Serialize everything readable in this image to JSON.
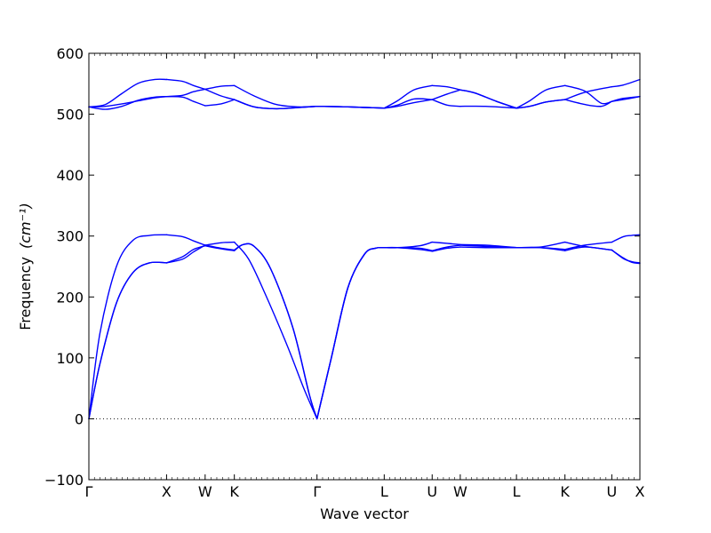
{
  "chart_data": {
    "type": "line",
    "title": "",
    "xlabel": "Wave vector",
    "ylabel": "Frequency",
    "ylabel_unit": "(cm⁻¹)",
    "ylim": [
      -100,
      600
    ],
    "yticks": [
      -100,
      0,
      100,
      200,
      300,
      400,
      500,
      600
    ],
    "ytick_labels": [
      "−100",
      "0",
      "100",
      "200",
      "300",
      "400",
      "500",
      "600"
    ],
    "xlim": [
      0,
      1
    ],
    "kpoints": [
      {
        "label": "Γ",
        "pos": 0.0
      },
      {
        "label": "X",
        "pos": 0.141
      },
      {
        "label": "W",
        "pos": 0.211
      },
      {
        "label": "K",
        "pos": 0.264
      },
      {
        "label": "Γ",
        "pos": 0.414
      },
      {
        "label": "L",
        "pos": 0.536
      },
      {
        "label": "U",
        "pos": 0.623
      },
      {
        "label": "W",
        "pos": 0.674
      },
      {
        "label": "L",
        "pos": 0.776
      },
      {
        "label": "K",
        "pos": 0.864
      },
      {
        "label": "U",
        "pos": 0.949
      },
      {
        "label": "X",
        "pos": 1.0
      }
    ],
    "zero_line": true,
    "band_color": "#0000ff",
    "series": [
      {
        "x": [
          0.0,
          0.02,
          0.05,
          0.08,
          0.11,
          0.141
        ],
        "y": [
          0,
          90,
          190,
          240,
          256,
          256
        ]
      },
      {
        "x": [
          0.0,
          0.02,
          0.05,
          0.08,
          0.11,
          0.141
        ],
        "y": [
          0,
          90,
          190,
          240,
          256,
          256
        ]
      },
      {
        "x": [
          0.0,
          0.02,
          0.05,
          0.08,
          0.11,
          0.141
        ],
        "y": [
          0,
          140,
          250,
          293,
          301,
          302
        ]
      },
      {
        "x": [
          0.141,
          0.17,
          0.19,
          0.211
        ],
        "y": [
          256,
          262,
          274,
          285
        ]
      },
      {
        "x": [
          0.141,
          0.17,
          0.19,
          0.211
        ],
        "y": [
          256,
          266,
          278,
          284
        ]
      },
      {
        "x": [
          0.141,
          0.17,
          0.19,
          0.211
        ],
        "y": [
          302,
          299,
          292,
          285
        ]
      },
      {
        "x": [
          0.211,
          0.24,
          0.264
        ],
        "y": [
          285,
          289,
          290
        ]
      },
      {
        "x": [
          0.211,
          0.24,
          0.264
        ],
        "y": [
          284,
          279,
          276
        ]
      },
      {
        "x": [
          0.211,
          0.24,
          0.264
        ],
        "y": [
          285,
          280,
          277
        ]
      },
      {
        "x": [
          0.264,
          0.29,
          0.32,
          0.36,
          0.39,
          0.414
        ],
        "y": [
          290,
          262,
          205,
          120,
          50,
          0
        ]
      },
      {
        "x": [
          0.264,
          0.28,
          0.3,
          0.33,
          0.37,
          0.4,
          0.414
        ],
        "y": [
          276,
          286,
          283,
          246,
          150,
          40,
          0
        ]
      },
      {
        "x": [
          0.264,
          0.28,
          0.3,
          0.33,
          0.37,
          0.4,
          0.414
        ],
        "y": [
          277,
          286,
          283,
          246,
          150,
          40,
          0
        ]
      },
      {
        "x": [
          0.414,
          0.44,
          0.47,
          0.5,
          0.52,
          0.536
        ],
        "y": [
          0,
          100,
          215,
          270,
          280,
          281
        ]
      },
      {
        "x": [
          0.414,
          0.44,
          0.47,
          0.5,
          0.52,
          0.536
        ],
        "y": [
          0,
          100,
          215,
          270,
          280,
          281
        ]
      },
      {
        "x": [
          0.414,
          0.44,
          0.47,
          0.5,
          0.52,
          0.536
        ],
        "y": [
          0,
          100,
          215,
          270,
          280,
          281
        ]
      },
      {
        "x": [
          0.536,
          0.56,
          0.6,
          0.623
        ],
        "y": [
          281,
          281,
          284,
          290
        ]
      },
      {
        "x": [
          0.536,
          0.56,
          0.6,
          0.623
        ],
        "y": [
          281,
          281,
          280,
          276
        ]
      },
      {
        "x": [
          0.536,
          0.56,
          0.6,
          0.623
        ],
        "y": [
          281,
          281,
          278,
          275
        ]
      },
      {
        "x": [
          0.623,
          0.65,
          0.674
        ],
        "y": [
          290,
          288,
          286
        ]
      },
      {
        "x": [
          0.623,
          0.65,
          0.674
        ],
        "y": [
          276,
          282,
          285
        ]
      },
      {
        "x": [
          0.623,
          0.65,
          0.674
        ],
        "y": [
          275,
          280,
          282
        ]
      },
      {
        "x": [
          0.674,
          0.72,
          0.776
        ],
        "y": [
          286,
          285,
          281
        ]
      },
      {
        "x": [
          0.674,
          0.72,
          0.776
        ],
        "y": [
          285,
          283,
          281
        ]
      },
      {
        "x": [
          0.674,
          0.72,
          0.776
        ],
        "y": [
          282,
          281,
          281
        ]
      },
      {
        "x": [
          0.776,
          0.82,
          0.864
        ],
        "y": [
          281,
          282,
          290
        ]
      },
      {
        "x": [
          0.776,
          0.82,
          0.864
        ],
        "y": [
          281,
          281,
          278
        ]
      },
      {
        "x": [
          0.776,
          0.82,
          0.864
        ],
        "y": [
          281,
          281,
          276
        ]
      },
      {
        "x": [
          0.864,
          0.9,
          0.949
        ],
        "y": [
          290,
          283,
          277
        ]
      },
      {
        "x": [
          0.864,
          0.9,
          0.949
        ],
        "y": [
          278,
          285,
          290
        ]
      },
      {
        "x": [
          0.864,
          0.9,
          0.949
        ],
        "y": [
          276,
          282,
          277
        ]
      },
      {
        "x": [
          0.949,
          0.97,
          0.985,
          1.0
        ],
        "y": [
          290,
          299,
          301,
          302
        ]
      },
      {
        "x": [
          0.949,
          0.97,
          0.985,
          1.0
        ],
        "y": [
          277,
          263,
          258,
          256
        ]
      },
      {
        "x": [
          0.949,
          0.97,
          0.985,
          1.0
        ],
        "y": [
          277,
          264,
          257,
          255
        ]
      },
      {
        "x": [
          0.0,
          0.03,
          0.06,
          0.09,
          0.12,
          0.141
        ],
        "y": [
          512,
          513,
          517,
          522,
          527,
          529
        ]
      },
      {
        "x": [
          0.0,
          0.03,
          0.06,
          0.09,
          0.12,
          0.141
        ],
        "y": [
          512,
          508,
          513,
          523,
          528,
          529
        ]
      },
      {
        "x": [
          0.0,
          0.03,
          0.06,
          0.09,
          0.12,
          0.141
        ],
        "y": [
          512,
          516,
          534,
          551,
          557,
          557
        ]
      },
      {
        "x": [
          0.141,
          0.17,
          0.19,
          0.211
        ],
        "y": [
          529,
          528,
          521,
          514
        ]
      },
      {
        "x": [
          0.141,
          0.17,
          0.19,
          0.211
        ],
        "y": [
          529,
          531,
          537,
          541
        ]
      },
      {
        "x": [
          0.141,
          0.17,
          0.19,
          0.211
        ],
        "y": [
          557,
          554,
          547,
          541
        ]
      },
      {
        "x": [
          0.211,
          0.24,
          0.264
        ],
        "y": [
          514,
          517,
          524
        ]
      },
      {
        "x": [
          0.211,
          0.24,
          0.264
        ],
        "y": [
          541,
          530,
          524
        ]
      },
      {
        "x": [
          0.211,
          0.24,
          0.264
        ],
        "y": [
          541,
          546,
          547
        ]
      },
      {
        "x": [
          0.264,
          0.3,
          0.34,
          0.38,
          0.414
        ],
        "y": [
          524,
          512,
          509,
          511,
          513
        ]
      },
      {
        "x": [
          0.264,
          0.3,
          0.34,
          0.38,
          0.414
        ],
        "y": [
          547,
          530,
          516,
          512,
          513
        ]
      },
      {
        "x": [
          0.264,
          0.3,
          0.34,
          0.38,
          0.414
        ],
        "y": [
          524,
          512,
          509,
          511,
          513
        ]
      },
      {
        "x": [
          0.414,
          0.47,
          0.536
        ],
        "y": [
          513,
          512,
          510
        ]
      },
      {
        "x": [
          0.414,
          0.47,
          0.536
        ],
        "y": [
          513,
          512,
          510
        ]
      },
      {
        "x": [
          0.414,
          0.47,
          0.536
        ],
        "y": [
          513,
          512,
          510
        ]
      },
      {
        "x": [
          0.536,
          0.56,
          0.59,
          0.623
        ],
        "y": [
          510,
          513,
          519,
          524
        ]
      },
      {
        "x": [
          0.536,
          0.56,
          0.59,
          0.623
        ],
        "y": [
          510,
          515,
          525,
          524
        ]
      },
      {
        "x": [
          0.536,
          0.56,
          0.59,
          0.623
        ],
        "y": [
          510,
          522,
          540,
          547
        ]
      },
      {
        "x": [
          0.623,
          0.65,
          0.674
        ],
        "y": [
          524,
          515,
          513
        ]
      },
      {
        "x": [
          0.623,
          0.65,
          0.674
        ],
        "y": [
          524,
          533,
          540
        ]
      },
      {
        "x": [
          0.623,
          0.65,
          0.674
        ],
        "y": [
          547,
          545,
          540
        ]
      },
      {
        "x": [
          0.674,
          0.72,
          0.776
        ],
        "y": [
          513,
          513,
          510
        ]
      },
      {
        "x": [
          0.674,
          0.7,
          0.74,
          0.776
        ],
        "y": [
          540,
          535,
          521,
          510
        ]
      },
      {
        "x": [
          0.674,
          0.7,
          0.74,
          0.776
        ],
        "y": [
          540,
          535,
          521,
          510
        ]
      },
      {
        "x": [
          0.776,
          0.8,
          0.83,
          0.864
        ],
        "y": [
          510,
          513,
          520,
          524
        ]
      },
      {
        "x": [
          0.776,
          0.8,
          0.83,
          0.864
        ],
        "y": [
          510,
          513,
          520,
          524
        ]
      },
      {
        "x": [
          0.776,
          0.8,
          0.83,
          0.864
        ],
        "y": [
          510,
          522,
          540,
          547
        ]
      },
      {
        "x": [
          0.864,
          0.9,
          0.949
        ],
        "y": [
          524,
          536,
          545
        ]
      },
      {
        "x": [
          0.864,
          0.9,
          0.93,
          0.949
        ],
        "y": [
          547,
          538,
          518,
          521
        ]
      },
      {
        "x": [
          0.864,
          0.9,
          0.93,
          0.949
        ],
        "y": [
          524,
          516,
          513,
          521
        ]
      },
      {
        "x": [
          0.949,
          0.97,
          1.0
        ],
        "y": [
          545,
          548,
          557
        ]
      },
      {
        "x": [
          0.949,
          0.97,
          1.0
        ],
        "y": [
          521,
          526,
          529
        ]
      },
      {
        "x": [
          0.949,
          0.97,
          1.0
        ],
        "y": [
          521,
          524,
          529
        ]
      }
    ]
  }
}
